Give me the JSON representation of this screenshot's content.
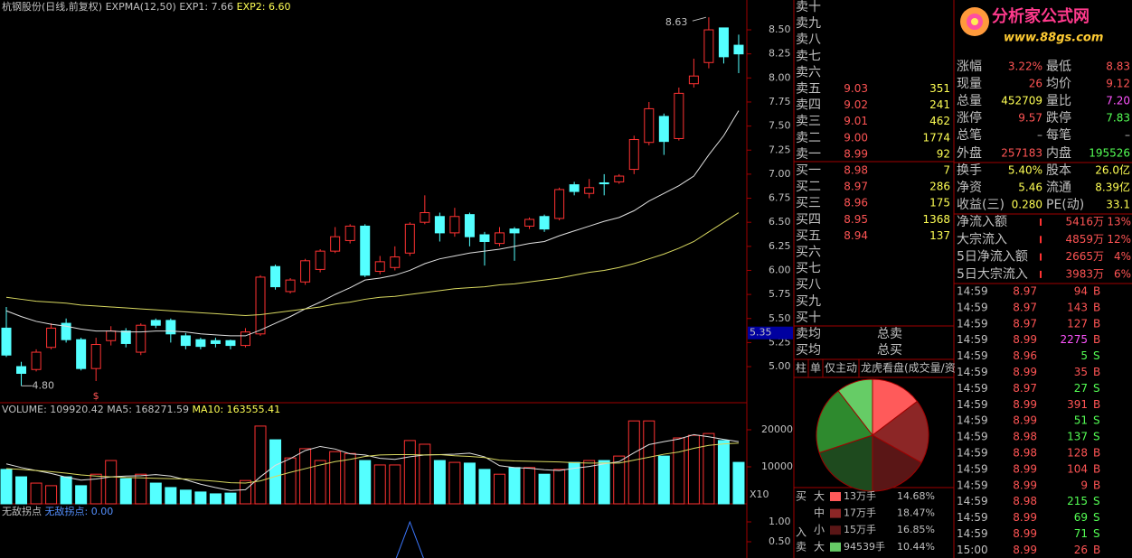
{
  "header": {
    "name": "杭钢股份(日线,前复权)",
    "indicator": "EXPMA(12,50)",
    "exp1": "EXP1: 7.66",
    "exp2": "EXP2: 6.60"
  },
  "chart": {
    "ylim": [
      4.625,
      8.81
    ],
    "yticks": [
      {
        "value": 8.5,
        "label": "8.50"
      },
      {
        "value": 8.25,
        "label": "8.25"
      },
      {
        "value": 8,
        "label": "8.00"
      },
      {
        "value": 7.75,
        "label": "7.75"
      },
      {
        "value": 7.5,
        "label": "7.50"
      },
      {
        "value": 7.25,
        "label": "7.25"
      },
      {
        "value": 7,
        "label": "7.00"
      },
      {
        "value": 6.75,
        "label": "6.75"
      },
      {
        "value": 6.5,
        "label": "6.50"
      },
      {
        "value": 6.25,
        "label": "6.25"
      },
      {
        "value": 6,
        "label": "6.00"
      },
      {
        "value": 5.75,
        "label": "5.75"
      },
      {
        "value": 5.5,
        "label": "5.50"
      },
      {
        "value": 5.25,
        "label": "5.25"
      },
      {
        "value": 5,
        "label": "5.00"
      }
    ],
    "cursor": {
      "value": 5.35,
      "label": "5.35"
    },
    "high_label": "8.63",
    "low_label": "4.80",
    "marker": "$",
    "candles": [
      [
        5.4,
        5.62,
        5.1,
        5.12
      ],
      [
        5.0,
        5.05,
        4.8,
        4.93
      ],
      [
        4.97,
        5.18,
        4.95,
        5.15
      ],
      [
        5.2,
        5.45,
        5.18,
        5.4
      ],
      [
        5.45,
        5.5,
        5.25,
        5.28
      ],
      [
        5.28,
        5.3,
        4.96,
        4.98
      ],
      [
        4.98,
        5.3,
        4.85,
        5.23
      ],
      [
        5.27,
        5.42,
        5.22,
        5.37
      ],
      [
        5.37,
        5.4,
        5.2,
        5.24
      ],
      [
        5.15,
        5.45,
        5.12,
        5.43
      ],
      [
        5.48,
        5.5,
        5.4,
        5.43
      ],
      [
        5.48,
        5.5,
        5.25,
        5.34
      ],
      [
        5.32,
        5.35,
        5.18,
        5.22
      ],
      [
        5.28,
        5.3,
        5.18,
        5.21
      ],
      [
        5.27,
        5.3,
        5.2,
        5.24
      ],
      [
        5.27,
        5.28,
        5.18,
        5.22
      ],
      [
        5.22,
        5.4,
        5.2,
        5.36
      ],
      [
        5.34,
        5.95,
        5.32,
        5.93
      ],
      [
        6.04,
        6.06,
        5.8,
        5.83
      ],
      [
        5.78,
        5.92,
        5.76,
        5.9
      ],
      [
        5.88,
        6.12,
        5.85,
        6.1
      ],
      [
        6.01,
        6.22,
        5.98,
        6.2
      ],
      [
        6.2,
        6.45,
        6.18,
        6.35
      ],
      [
        6.31,
        6.48,
        6.28,
        6.46
      ],
      [
        6.46,
        6.48,
        5.93,
        5.95
      ],
      [
        5.99,
        6.15,
        5.96,
        6.09
      ],
      [
        6.03,
        6.25,
        6.0,
        6.14
      ],
      [
        6.18,
        6.5,
        6.15,
        6.48
      ],
      [
        6.5,
        6.78,
        6.48,
        6.6
      ],
      [
        6.56,
        6.6,
        6.3,
        6.39
      ],
      [
        6.39,
        6.65,
        6.35,
        6.56
      ],
      [
        6.58,
        6.6,
        6.25,
        6.35
      ],
      [
        6.37,
        6.4,
        6.05,
        6.3
      ],
      [
        6.28,
        6.45,
        6.25,
        6.39
      ],
      [
        6.43,
        6.45,
        6.1,
        6.39
      ],
      [
        6.46,
        6.55,
        6.43,
        6.53
      ],
      [
        6.56,
        6.58,
        6.4,
        6.43
      ],
      [
        6.54,
        6.86,
        6.52,
        6.84
      ],
      [
        6.89,
        6.92,
        6.78,
        6.82
      ],
      [
        6.8,
        6.95,
        6.75,
        6.86
      ],
      [
        6.91,
        7.0,
        6.78,
        6.9
      ],
      [
        6.92,
        7.0,
        6.9,
        6.98
      ],
      [
        7.05,
        7.4,
        7.0,
        7.36
      ],
      [
        7.33,
        7.75,
        7.3,
        7.68
      ],
      [
        7.6,
        7.63,
        7.2,
        7.34
      ],
      [
        7.37,
        7.9,
        7.35,
        7.84
      ],
      [
        7.94,
        8.2,
        7.9,
        8.02
      ],
      [
        8.16,
        8.63,
        8.1,
        8.5
      ],
      [
        8.52,
        8.52,
        8.15,
        8.22
      ],
      [
        8.34,
        8.45,
        8.05,
        8.25
      ]
    ],
    "exp1": [
      5.58,
      5.52,
      5.47,
      5.44,
      5.42,
      5.39,
      5.37,
      5.37,
      5.36,
      5.36,
      5.37,
      5.37,
      5.36,
      5.34,
      5.33,
      5.32,
      5.32,
      5.38,
      5.45,
      5.52,
      5.6,
      5.67,
      5.75,
      5.82,
      5.9,
      5.92,
      5.95,
      6.0,
      6.07,
      6.12,
      6.15,
      6.18,
      6.2,
      6.22,
      6.25,
      6.28,
      6.3,
      6.36,
      6.41,
      6.46,
      6.51,
      6.55,
      6.62,
      6.72,
      6.8,
      6.88,
      6.98,
      7.2,
      7.4,
      7.66
    ],
    "exp2": [
      5.72,
      5.7,
      5.68,
      5.67,
      5.66,
      5.64,
      5.63,
      5.62,
      5.61,
      5.6,
      5.59,
      5.58,
      5.57,
      5.56,
      5.55,
      5.54,
      5.53,
      5.54,
      5.56,
      5.58,
      5.6,
      5.62,
      5.65,
      5.67,
      5.7,
      5.72,
      5.73,
      5.75,
      5.77,
      5.79,
      5.81,
      5.82,
      5.83,
      5.85,
      5.86,
      5.88,
      5.9,
      5.92,
      5.95,
      5.98,
      6.0,
      6.03,
      6.07,
      6.12,
      6.17,
      6.23,
      6.3,
      6.4,
      6.5,
      6.6
    ],
    "exp1_color": "#e0e0e0",
    "exp2_color": "#d8d860",
    "up_color": "#ff3232",
    "down_color": "#54ffff"
  },
  "volume": {
    "header": {
      "vol": "VOLUME: 109920.42",
      "ma5": "MA5: 168271.59",
      "ma10": "MA10: 163555.41"
    },
    "ylim": [
      0,
      27317
    ],
    "yticks": [
      20000,
      10000
    ],
    "unit": "X10",
    "values": [
      9300,
      7300,
      5600,
      4900,
      7300,
      4900,
      8000,
      11700,
      6800,
      8000,
      5600,
      4400,
      3700,
      3200,
      2700,
      2900,
      6300,
      21000,
      17300,
      12400,
      14900,
      11700,
      14100,
      13600,
      11700,
      10500,
      10500,
      17100,
      16100,
      11700,
      11200,
      11000,
      9300,
      8000,
      9800,
      9800,
      8000,
      9300,
      11200,
      11700,
      11700,
      12900,
      22400,
      22400,
      12900,
      17800,
      18500,
      19000,
      17100,
      11200
    ],
    "ma5": [
      10800,
      9800,
      9000,
      8200,
      7200,
      6400,
      6700,
      7300,
      7500,
      7600,
      7900,
      7500,
      6500,
      5300,
      4400,
      3600,
      3800,
      7300,
      10400,
      12200,
      14400,
      15500,
      14800,
      13500,
      13200,
      12300,
      12000,
      12700,
      13200,
      13300,
      13400,
      13700,
      12700,
      10300,
      9800,
      9600,
      9200,
      9000,
      9600,
      10100,
      10800,
      11400,
      13800,
      16000,
      16800,
      17500,
      18700,
      18100,
      17400,
      16800
    ],
    "ma10": [
      9500,
      9300,
      9000,
      8700,
      8300,
      7800,
      7500,
      7300,
      7100,
      7000,
      6900,
      6800,
      6700,
      6400,
      6100,
      5700,
      5600,
      6200,
      7400,
      8500,
      9500,
      10500,
      11400,
      12000,
      12800,
      13200,
      13300,
      13300,
      13200,
      13300,
      13000,
      12800,
      12500,
      11800,
      11600,
      11500,
      11400,
      11300,
      11100,
      11000,
      11000,
      11000,
      11800,
      12600,
      13400,
      14000,
      15000,
      15800,
      16200,
      16400
    ]
  },
  "indicator": {
    "name": "无敌拐点",
    "value_label": "无敌拐点: 0.00",
    "ylim": [
      0.0909,
      1.4545
    ],
    "yticks": [
      {
        "value": 1,
        "label": "1.00"
      },
      {
        "value": 0.5,
        "label": "0.50"
      }
    ],
    "values": [
      0,
      0,
      0,
      0,
      0,
      0,
      0,
      0,
      0,
      0,
      0,
      0,
      0,
      0,
      0,
      0,
      0,
      0,
      0,
      0,
      0,
      0,
      0,
      0,
      0,
      0,
      0,
      1,
      0,
      0,
      0,
      0,
      0,
      0,
      0,
      0,
      0,
      0,
      0,
      0,
      0,
      0,
      0,
      0,
      0,
      0,
      0,
      0,
      0,
      0
    ],
    "color": "#3c78ff"
  },
  "order_book": {
    "asks": [
      {
        "label": "卖十"
      },
      {
        "label": "卖九"
      },
      {
        "label": "卖八"
      },
      {
        "label": "卖七"
      },
      {
        "label": "卖六"
      },
      {
        "label": "卖五",
        "price": "9.03",
        "vol": "351"
      },
      {
        "label": "卖四",
        "price": "9.02",
        "vol": "241"
      },
      {
        "label": "卖三",
        "price": "9.01",
        "vol": "462"
      },
      {
        "label": "卖二",
        "price": "9.00",
        "vol": "1774"
      },
      {
        "label": "卖一",
        "price": "8.99",
        "vol": "92"
      }
    ],
    "bids": [
      {
        "label": "买一",
        "price": "8.98",
        "vol": "7"
      },
      {
        "label": "买二",
        "price": "8.97",
        "vol": "286"
      },
      {
        "label": "买三",
        "price": "8.96",
        "vol": "175"
      },
      {
        "label": "买四",
        "price": "8.95",
        "vol": "1368"
      },
      {
        "label": "买五",
        "price": "8.94",
        "vol": "137"
      },
      {
        "label": "买六"
      },
      {
        "label": "买七"
      },
      {
        "label": "买八"
      },
      {
        "label": "买九"
      },
      {
        "label": "买十"
      }
    ],
    "ask_avg": "卖均",
    "ask_total": "总卖",
    "bid_avg": "买均",
    "bid_total": "总买"
  },
  "tabs": [
    "柱",
    "单",
    "仅主动",
    "龙虎看盘(成交量/资"
  ],
  "pie": {
    "slices": [
      {
        "value": 14.68,
        "color": "#ff5a5a"
      },
      {
        "value": 18.47,
        "color": "#8c2626"
      },
      {
        "value": 16.85,
        "color": "#5a1616"
      },
      {
        "value": 19.9,
        "color": "#1e4a1e"
      },
      {
        "value": 19.66,
        "color": "#2e8a2e"
      },
      {
        "value": 10.44,
        "color": "#66cc66"
      }
    ]
  },
  "flow": {
    "in_label": "入",
    "rows": [
      {
        "side": "买",
        "size": "大",
        "color": "#ff5a5a",
        "amount": "13万手",
        "pct": "14.68%"
      },
      {
        "size": "中",
        "color": "#8c2626",
        "amount": "17万手",
        "pct": "18.47%"
      },
      {
        "size": "小",
        "color": "#5a1616",
        "amount": "15万手",
        "pct": "16.85%"
      },
      {
        "side": "卖",
        "size": "大",
        "color": "#66cc66",
        "amount": "94539手",
        "pct": "10.44%"
      }
    ]
  },
  "logo": {
    "name": "分析家公式网",
    "url": "www.88gs.com"
  },
  "stats": [
    {
      "l1": "涨幅",
      "v1": "3.22%",
      "c1": "#ff5454",
      "l2": "最低",
      "v2": "8.83",
      "c2": "#ff5454"
    },
    {
      "l1": "现量",
      "v1": "26",
      "c1": "#ff5454",
      "l2": "均价",
      "v2": "9.12",
      "c2": "#ff5454"
    },
    {
      "l1": "总量",
      "v1": "452709",
      "c1": "#ffff54",
      "l2": "量比",
      "v2": "7.20",
      "c2": "#ff54ff"
    },
    {
      "l1": "涨停",
      "v1": "9.57",
      "c1": "#ff5454",
      "l2": "跌停",
      "v2": "7.83",
      "c2": "#54ff54"
    },
    {
      "l1": "总笔",
      "v1": "–",
      "c1": "#c0c0c0",
      "l2": "每笔",
      "v2": "–",
      "c2": "#c0c0c0"
    },
    {
      "l1": "外盘",
      "v1": "257183",
      "c1": "#ff5454",
      "l2": "内盘",
      "v2": "195526",
      "c2": "#54ff54"
    },
    {
      "l1": "换手",
      "v1": "5.40%",
      "c1": "#ffff54",
      "l2": "股本",
      "v2": "26.0亿",
      "c2": "#ffff54"
    },
    {
      "l1": "净资",
      "v1": "5.46",
      "c1": "#ffff54",
      "l2": "流通",
      "v2": "8.39亿",
      "c2": "#ffff54"
    },
    {
      "l1": "收益(三)",
      "v1": "0.280",
      "c1": "#ffff54",
      "l2": "PE(动)",
      "v2": "33.1",
      "c2": "#ffff54"
    }
  ],
  "flows": [
    {
      "label": "净流入额",
      "amount": "5416万",
      "pct": "13%"
    },
    {
      "label": "大宗流入",
      "amount": "4859万",
      "pct": "12%"
    },
    {
      "label": "5日净流入额",
      "amount": "2665万",
      "pct": "4%"
    },
    {
      "label": "5日大宗流入",
      "amount": "3983万",
      "pct": "6%"
    }
  ],
  "trades": [
    [
      "14:59",
      "8.97",
      "94",
      "B"
    ],
    [
      "14:59",
      "8.97",
      "143",
      "B"
    ],
    [
      "14:59",
      "8.97",
      "127",
      "B"
    ],
    [
      "14:59",
      "8.99",
      "2275",
      "B"
    ],
    [
      "14:59",
      "8.96",
      "5",
      "S"
    ],
    [
      "14:59",
      "8.99",
      "35",
      "B"
    ],
    [
      "14:59",
      "8.97",
      "27",
      "S"
    ],
    [
      "14:59",
      "8.99",
      "391",
      "B"
    ],
    [
      "14:59",
      "8.99",
      "51",
      "S"
    ],
    [
      "14:59",
      "8.98",
      "137",
      "S"
    ],
    [
      "14:59",
      "8.98",
      "128",
      "B"
    ],
    [
      "14:59",
      "8.99",
      "104",
      "B"
    ],
    [
      "14:59",
      "8.99",
      "9",
      "B"
    ],
    [
      "14:59",
      "8.98",
      "215",
      "S"
    ],
    [
      "14:59",
      "8.99",
      "69",
      "S"
    ],
    [
      "14:59",
      "8.99",
      "71",
      "S"
    ],
    [
      "15:00",
      "8.99",
      "26",
      "B"
    ]
  ]
}
